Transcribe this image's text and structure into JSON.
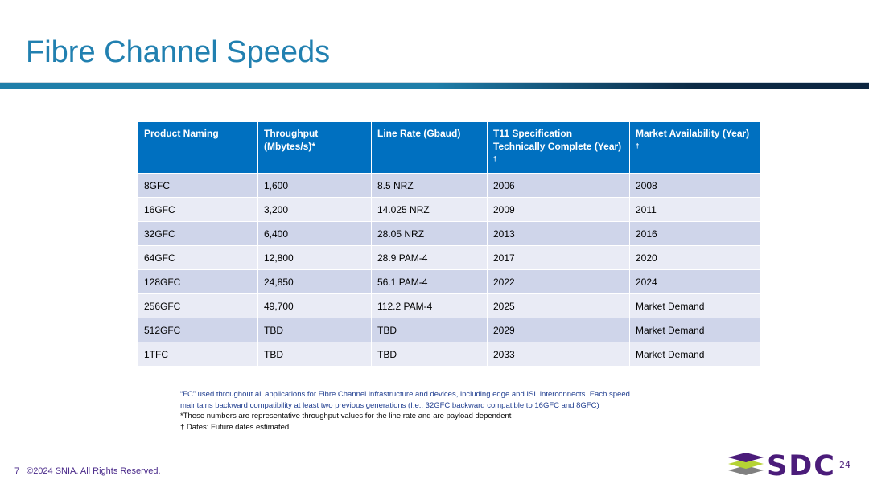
{
  "title": "Fibre Channel Speeds",
  "table": {
    "headers": [
      "Product Naming",
      "Throughput (Mbytes/s)*",
      "Line Rate (Gbaud)",
      "T11 Specification Technically Complete (Year)",
      "Market Availability (Year)"
    ],
    "dagger": "†",
    "rows": [
      [
        "8GFC",
        "1,600",
        "8.5 NRZ",
        "2006",
        "2008"
      ],
      [
        "16GFC",
        "3,200",
        "14.025 NRZ",
        "2009",
        "2011"
      ],
      [
        "32GFC",
        "6,400",
        "28.05 NRZ",
        "2013",
        "2016"
      ],
      [
        "64GFC",
        "12,800",
        "28.9 PAM-4",
        "2017",
        "2020"
      ],
      [
        "128GFC",
        "24,850",
        "56.1 PAM-4",
        "2022",
        "2024"
      ],
      [
        "256GFC",
        "49,700",
        "112.2 PAM-4",
        "2025",
        "Market Demand"
      ],
      [
        "512GFC",
        "TBD",
        "TBD",
        "2029",
        "Market Demand"
      ],
      [
        "1TFC",
        "TBD",
        "TBD",
        "2033",
        "Market Demand"
      ]
    ]
  },
  "notes": [
    "“FC” used throughout all applications for Fibre Channel infrastructure and devices, including edge and ISL interconnects.  Each speed",
    "maintains backward compatibility at least two previous generations (I.e., 32GFC backward compatible to 16GFC and 8GFC)",
    "*These numbers are representative throughput values for the line rate and are payload dependent",
    "† Dates: Future dates estimated"
  ],
  "footer": "7 | ©2024 SNIA. All Rights Reserved.",
  "logo": {
    "text": "SDC",
    "year": "24"
  }
}
